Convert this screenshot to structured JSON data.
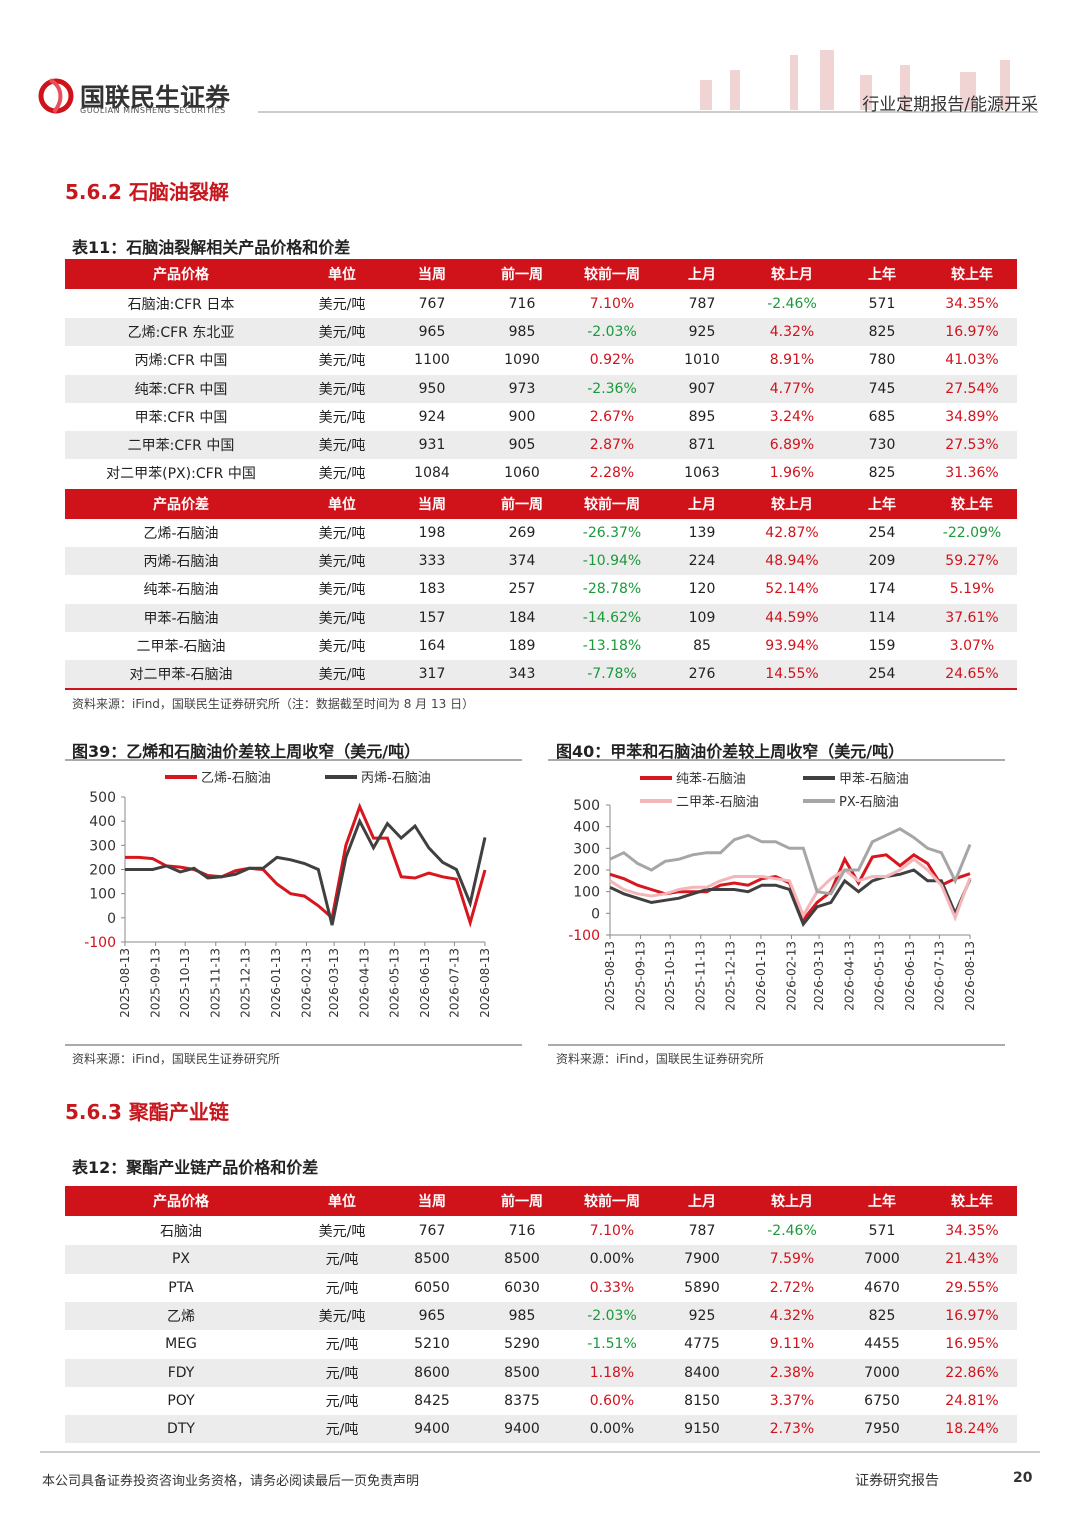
{
  "header": {
    "company": "国联民生证券",
    "company_en": "GUOLIAN MINSHENG SECURITIES",
    "report_type": "行业定期报告/能源开采"
  },
  "section_1": "5.6.2 石脑油裂解",
  "table_11": {
    "title": "表11：石脑油裂解相关产品价格和价差",
    "header": [
      "产品价格",
      "单位",
      "当周",
      "前一周",
      "较前一周",
      "上月",
      "较上月",
      "上年",
      "较上年"
    ],
    "rows": [
      [
        "石脑油:CFR 日本",
        "美元/吨",
        "767",
        "716",
        "7.10%",
        "787",
        "-2.46%",
        "571",
        "34.35%"
      ],
      [
        "乙烯:CFR 东北亚",
        "美元/吨",
        "965",
        "985",
        "-2.03%",
        "925",
        "4.32%",
        "825",
        "16.97%"
      ],
      [
        "丙烯:CFR 中国",
        "美元/吨",
        "1100",
        "1090",
        "0.92%",
        "1010",
        "8.91%",
        "780",
        "41.03%"
      ],
      [
        "纯苯:CFR 中国",
        "美元/吨",
        "950",
        "973",
        "-2.36%",
        "907",
        "4.77%",
        "745",
        "27.54%"
      ],
      [
        "甲苯:CFR 中国",
        "美元/吨",
        "924",
        "900",
        "2.67%",
        "895",
        "3.24%",
        "685",
        "34.89%"
      ],
      [
        "二甲苯:CFR 中国",
        "美元/吨",
        "931",
        "905",
        "2.87%",
        "871",
        "6.89%",
        "730",
        "27.53%"
      ],
      [
        "对二甲苯(PX):CFR 中国",
        "美元/吨",
        "1084",
        "1060",
        "2.28%",
        "1063",
        "1.96%",
        "825",
        "31.36%"
      ]
    ],
    "spread_header": [
      "产品价差",
      "单位",
      "当周",
      "前一周",
      "较前一周",
      "上月",
      "较上月",
      "上年",
      "较上年"
    ],
    "spread_rows": [
      [
        "乙烯-石脑油",
        "美元/吨",
        "198",
        "269",
        "-26.37%",
        "139",
        "42.87%",
        "254",
        "-22.09%"
      ],
      [
        "丙烯-石脑油",
        "美元/吨",
        "333",
        "374",
        "-10.94%",
        "224",
        "48.94%",
        "209",
        "59.27%"
      ],
      [
        "纯苯-石脑油",
        "美元/吨",
        "183",
        "257",
        "-28.78%",
        "120",
        "52.14%",
        "174",
        "5.19%"
      ],
      [
        "甲苯-石脑油",
        "美元/吨",
        "157",
        "184",
        "-14.62%",
        "109",
        "44.59%",
        "114",
        "37.61%"
      ],
      [
        "二甲苯-石脑油",
        "美元/吨",
        "164",
        "189",
        "-13.18%",
        "85",
        "93.94%",
        "159",
        "3.07%"
      ],
      [
        "对二甲苯-石脑油",
        "美元/吨",
        "317",
        "343",
        "-7.78%",
        "276",
        "14.55%",
        "254",
        "24.65%"
      ]
    ],
    "source": "资料来源：iFind，国联民生证券研究所（注：数据截至时间为 8 月 13 日）"
  },
  "chart_data": [
    {
      "type": "line",
      "title": "图39：乙烯和石脑油价差较上周收窄（美元/吨）",
      "source": "资料来源：iFind，国联民生证券研究所",
      "x": [
        "2025-08-13",
        "2025-08-27",
        "2025-09-10",
        "2025-09-24",
        "2025-10-08",
        "2025-10-22",
        "2025-11-05",
        "2025-11-19",
        "2025-12-03",
        "2025-12-17",
        "2025-12-31",
        "2026-01-14",
        "2026-01-28",
        "2026-02-11",
        "2026-02-25",
        "2026-03-11",
        "2026-03-25",
        "2026-04-08",
        "2026-04-22",
        "2026-05-06",
        "2026-05-20",
        "2026-06-03",
        "2026-06-17",
        "2026-07-01",
        "2026-07-15",
        "2026-07-29",
        "2026-08-13"
      ],
      "xlim": [
        "2025-08-13",
        "2026-08-13"
      ],
      "xticks": [
        "2025-08-13",
        "2025-09-13",
        "2025-10-13",
        "2025-11-13",
        "2025-12-13",
        "2026-01-13",
        "2026-02-13",
        "2026-03-13",
        "2026-04-13",
        "2026-05-13",
        "2026-06-13",
        "2026-07-13",
        "2026-08-13"
      ],
      "ylim": [
        -100,
        500
      ],
      "yticks": [
        -100,
        0,
        100,
        200,
        300,
        400,
        500
      ],
      "series": [
        {
          "name": "乙烯-石脑油",
          "color": "#d7161e",
          "values": [
            250,
            250,
            245,
            215,
            210,
            200,
            175,
            170,
            195,
            205,
            200,
            140,
            100,
            90,
            50,
            0,
            300,
            460,
            330,
            330,
            170,
            165,
            185,
            170,
            160,
            -20,
            198
          ]
        },
        {
          "name": "丙烯-石脑油",
          "color": "#404040",
          "values": [
            200,
            200,
            200,
            215,
            190,
            205,
            165,
            170,
            180,
            205,
            205,
            250,
            240,
            225,
            200,
            -30,
            250,
            400,
            290,
            390,
            330,
            380,
            290,
            230,
            200,
            60,
            333
          ]
        }
      ]
    },
    {
      "type": "line",
      "title": "图40：甲苯和石脑油价差较上周收窄（美元/吨）",
      "source": "资料来源：iFind，国联民生证券研究所",
      "x": [
        "2025-08-13",
        "2025-08-27",
        "2025-09-10",
        "2025-09-24",
        "2025-10-08",
        "2025-10-22",
        "2025-11-05",
        "2025-11-19",
        "2025-12-03",
        "2025-12-17",
        "2025-12-31",
        "2026-01-14",
        "2026-01-28",
        "2026-02-11",
        "2026-02-25",
        "2026-03-11",
        "2026-03-25",
        "2026-04-08",
        "2026-04-22",
        "2026-05-06",
        "2026-05-20",
        "2026-06-03",
        "2026-06-17",
        "2026-07-01",
        "2026-07-15",
        "2026-07-29",
        "2026-08-13"
      ],
      "xlim": [
        "2025-08-13",
        "2026-08-13"
      ],
      "xticks": [
        "2025-08-13",
        "2025-09-13",
        "2025-10-13",
        "2025-11-13",
        "2025-12-13",
        "2026-01-13",
        "2026-02-13",
        "2026-03-13",
        "2026-04-13",
        "2026-05-13",
        "2026-06-13",
        "2026-07-13",
        "2026-08-13"
      ],
      "ylim": [
        -100,
        500
      ],
      "yticks": [
        -100,
        0,
        100,
        200,
        300,
        400,
        500
      ],
      "series": [
        {
          "name": "纯苯-石脑油",
          "color": "#d7161e",
          "values": [
            180,
            160,
            130,
            110,
            90,
            100,
            100,
            100,
            130,
            140,
            130,
            160,
            170,
            140,
            -30,
            50,
            100,
            250,
            140,
            260,
            270,
            220,
            270,
            230,
            130,
            160,
            183
          ]
        },
        {
          "name": "甲苯-石脑油",
          "color": "#404040",
          "values": [
            120,
            90,
            70,
            50,
            60,
            70,
            90,
            110,
            110,
            110,
            100,
            130,
            130,
            110,
            -50,
            30,
            50,
            150,
            100,
            150,
            170,
            180,
            200,
            150,
            150,
            0,
            157
          ]
        },
        {
          "name": "二甲苯-石脑油",
          "color": "#f4b6b8",
          "values": [
            150,
            110,
            90,
            80,
            90,
            110,
            120,
            120,
            150,
            170,
            170,
            170,
            160,
            150,
            -10,
            100,
            160,
            200,
            150,
            170,
            170,
            200,
            250,
            200,
            130,
            -20,
            164
          ]
        },
        {
          "name": "PX-石脑油",
          "color": "#a6a6a6",
          "values": [
            250,
            280,
            230,
            200,
            240,
            250,
            270,
            280,
            280,
            340,
            360,
            330,
            330,
            300,
            300,
            100,
            90,
            200,
            200,
            330,
            360,
            390,
            350,
            300,
            280,
            150,
            317
          ]
        }
      ]
    }
  ],
  "section_2": "5.6.3 聚酯产业链",
  "table_12": {
    "title": "表12：聚酯产业链产品价格和价差",
    "header": [
      "产品价格",
      "单位",
      "当周",
      "前一周",
      "较前一周",
      "上月",
      "较上月",
      "上年",
      "较上年"
    ],
    "rows": [
      [
        "石脑油",
        "美元/吨",
        "767",
        "716",
        "7.10%",
        "787",
        "-2.46%",
        "571",
        "34.35%"
      ],
      [
        "PX",
        "元/吨",
        "8500",
        "8500",
        "0.00%",
        "7900",
        "7.59%",
        "7000",
        "21.43%"
      ],
      [
        "PTA",
        "元/吨",
        "6050",
        "6030",
        "0.33%",
        "5890",
        "2.72%",
        "4670",
        "29.55%"
      ],
      [
        "乙烯",
        "美元/吨",
        "965",
        "985",
        "-2.03%",
        "925",
        "4.32%",
        "825",
        "16.97%"
      ],
      [
        "MEG",
        "元/吨",
        "5210",
        "5290",
        "-1.51%",
        "4775",
        "9.11%",
        "4455",
        "16.95%"
      ],
      [
        "FDY",
        "元/吨",
        "8600",
        "8500",
        "1.18%",
        "8400",
        "2.38%",
        "7000",
        "22.86%"
      ],
      [
        "POY",
        "元/吨",
        "8425",
        "8375",
        "0.60%",
        "8150",
        "3.37%",
        "6750",
        "24.81%"
      ],
      [
        "DTY",
        "元/吨",
        "9400",
        "9400",
        "0.00%",
        "9150",
        "2.73%",
        "7950",
        "18.24%"
      ]
    ]
  },
  "footer": {
    "disclaimer": "本公司具备证券投资咨询业务资格，请务必阅读最后一页免责声明",
    "label": "证券研究报告",
    "page": "20"
  }
}
